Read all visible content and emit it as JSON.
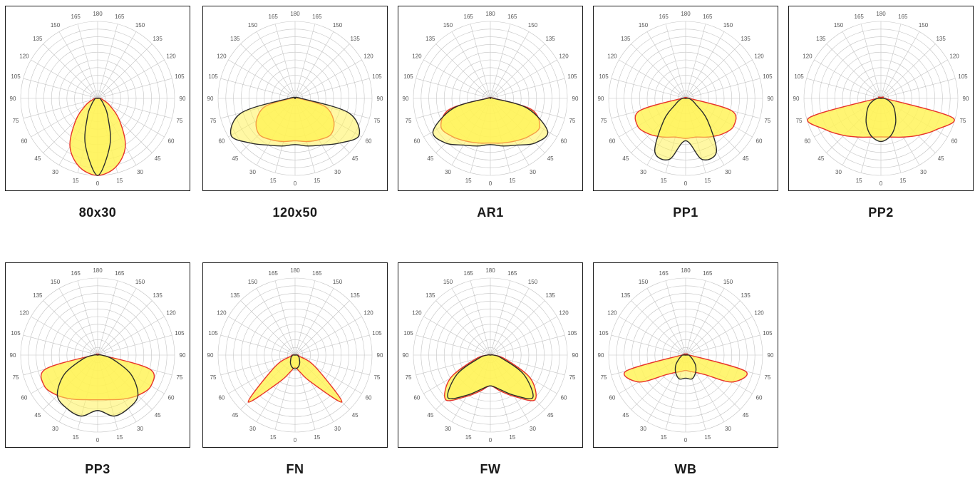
{
  "colors": {
    "fill": "#fff35a",
    "red_curve": "#e8332a",
    "dark_curve": "#2b2b2b",
    "grid": "#c4c4c4",
    "frame": "#1a1a1a"
  },
  "angle_labels": [
    "0",
    "15",
    "30",
    "45",
    "60",
    "75",
    "90",
    "105",
    "120",
    "135",
    "150",
    "165",
    "180"
  ],
  "chart_data": [
    {
      "type": "polar",
      "title": "80x30",
      "angles": [
        0,
        15,
        30,
        45,
        60,
        75,
        90,
        105,
        120,
        135,
        150,
        165,
        180
      ],
      "series": [
        {
          "color": "red",
          "values": [
            1.0,
            0.92,
            0.72,
            0.4,
            0.18,
            0.07,
            0.04,
            0,
            0,
            0,
            0,
            0,
            0
          ]
        },
        {
          "color": "dark",
          "values": [
            1.0,
            0.62,
            0.26,
            0.11,
            0.06,
            0.04,
            0.03,
            0,
            0,
            0,
            0,
            0,
            0
          ]
        }
      ]
    },
    {
      "type": "polar",
      "title": "120x50",
      "angles": [
        0,
        15,
        30,
        45,
        60,
        75,
        90,
        105,
        120,
        135,
        150,
        165,
        180
      ],
      "series": [
        {
          "color": "red",
          "values": [
            0.55,
            0.58,
            0.62,
            0.66,
            0.58,
            0.4,
            0.05,
            0,
            0,
            0,
            0,
            0,
            0
          ]
        },
        {
          "color": "dark",
          "values": [
            0.6,
            0.64,
            0.7,
            0.82,
            0.96,
            0.72,
            0.08,
            0,
            0,
            0,
            0,
            0,
            0
          ]
        }
      ]
    },
    {
      "type": "polar",
      "title": "AR1",
      "angles": [
        0,
        15,
        30,
        45,
        60,
        75,
        90,
        105,
        120,
        135,
        150,
        165,
        180
      ],
      "series": [
        {
          "color": "red",
          "values": [
            0.58,
            0.6,
            0.64,
            0.7,
            0.74,
            0.55,
            0.05,
            0,
            0,
            0,
            0,
            0,
            0
          ]
        },
        {
          "color": "dark",
          "values": [
            0.6,
            0.64,
            0.7,
            0.82,
            0.86,
            0.5,
            0.04,
            0,
            0,
            0,
            0,
            0,
            0
          ]
        }
      ]
    },
    {
      "type": "polar",
      "title": "PP1",
      "angles": [
        0,
        15,
        30,
        45,
        60,
        75,
        90,
        105,
        120,
        135,
        150,
        165,
        180
      ],
      "series": [
        {
          "color": "red",
          "values": [
            0.52,
            0.52,
            0.58,
            0.66,
            0.72,
            0.62,
            0.05,
            0,
            0,
            0,
            0,
            0,
            0
          ]
        },
        {
          "color": "dark",
          "values": [
            0.55,
            0.82,
            0.8,
            0.4,
            0.15,
            0.08,
            0.04,
            0,
            0,
            0,
            0,
            0,
            0
          ]
        }
      ]
    },
    {
      "type": "polar",
      "title": "PP2",
      "angles": [
        0,
        15,
        30,
        45,
        60,
        75,
        90,
        105,
        120,
        135,
        150,
        165,
        180
      ],
      "series": [
        {
          "color": "red",
          "values": [
            0.5,
            0.52,
            0.58,
            0.68,
            0.82,
            0.96,
            0.05,
            0,
            0,
            0,
            0,
            0,
            0
          ]
        },
        {
          "color": "dark",
          "values": [
            0.56,
            0.5,
            0.38,
            0.26,
            0.18,
            0.1,
            0.04,
            0,
            0,
            0,
            0,
            0,
            0
          ]
        }
      ]
    },
    {
      "type": "polar",
      "title": "PP3",
      "angles": [
        0,
        15,
        30,
        45,
        60,
        75,
        90,
        105,
        120,
        135,
        150,
        165,
        180
      ],
      "series": [
        {
          "color": "red",
          "values": [
            0.58,
            0.6,
            0.66,
            0.74,
            0.8,
            0.7,
            0.05,
            0,
            0,
            0,
            0,
            0,
            0
          ]
        },
        {
          "color": "dark",
          "values": [
            0.72,
            0.82,
            0.8,
            0.74,
            0.5,
            0.2,
            0.05,
            0,
            0,
            0,
            0,
            0,
            0
          ]
        }
      ]
    },
    {
      "type": "polar",
      "title": "FN",
      "angles": [
        0,
        15,
        30,
        45,
        60,
        75,
        90,
        105,
        120,
        135,
        150,
        165,
        180
      ],
      "series": [
        {
          "color": "red",
          "values": [
            0.16,
            0.22,
            0.4,
            0.86,
            0.3,
            0.06,
            0.04,
            0,
            0,
            0,
            0,
            0,
            0
          ]
        },
        {
          "color": "dark",
          "values": [
            0.18,
            0.16,
            0.12,
            0.08,
            0.06,
            0.04,
            0.03,
            0,
            0,
            0,
            0,
            0,
            0
          ]
        }
      ]
    },
    {
      "type": "polar",
      "title": "FW",
      "angles": [
        0,
        15,
        30,
        45,
        60,
        75,
        90,
        105,
        120,
        135,
        150,
        165,
        180
      ],
      "series": [
        {
          "color": "red",
          "values": [
            0.4,
            0.48,
            0.62,
            0.82,
            0.6,
            0.2,
            0.04,
            0,
            0,
            0,
            0,
            0,
            0
          ]
        },
        {
          "color": "dark",
          "values": [
            0.4,
            0.46,
            0.6,
            0.78,
            0.5,
            0.15,
            0.04,
            0,
            0,
            0,
            0,
            0,
            0
          ]
        }
      ]
    },
    {
      "type": "polar",
      "title": "WB",
      "angles": [
        0,
        15,
        30,
        45,
        60,
        75,
        90,
        105,
        120,
        135,
        150,
        165,
        180
      ],
      "series": [
        {
          "color": "red",
          "values": [
            0.2,
            0.22,
            0.26,
            0.36,
            0.7,
            0.8,
            0.05,
            0,
            0,
            0,
            0,
            0,
            0
          ]
        },
        {
          "color": "dark",
          "values": [
            0.3,
            0.32,
            0.26,
            0.18,
            0.1,
            0.06,
            0.04,
            0,
            0,
            0,
            0,
            0,
            0
          ]
        }
      ]
    }
  ]
}
